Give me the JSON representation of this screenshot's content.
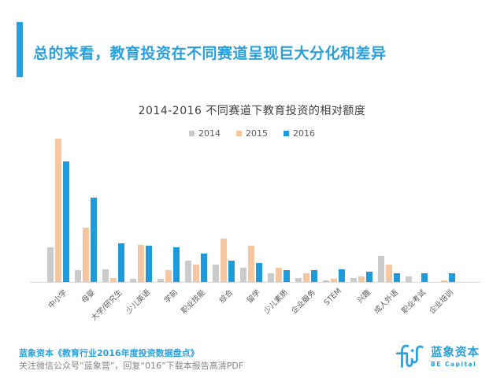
{
  "slide": {
    "title": "总的来看，教育投资在不同赛道呈现巨大分化和差异",
    "accent_color": "#29A0DC"
  },
  "chart_data": {
    "type": "bar",
    "title": "2014-2016  不同赛道下教育投资的相对额度",
    "categories": [
      "中小学",
      "母婴",
      "大学/研究生",
      "少儿英语",
      "学前",
      "职业技能",
      "综合",
      "留学",
      "少儿素质",
      "企业服务",
      "STEM",
      "兴趣",
      "成人外语",
      "职业考试",
      "企业培训"
    ],
    "series": [
      {
        "name": "2014",
        "color": "#CBCBCB",
        "values": [
          24,
          8,
          9,
          2,
          2,
          15,
          12,
          10,
          6,
          3,
          1,
          3,
          18,
          4,
          0
        ]
      },
      {
        "name": "2015",
        "color": "#F6C6A1",
        "values": [
          100,
          38,
          3,
          26,
          8,
          12,
          30,
          25,
          10,
          6,
          2,
          4,
          12,
          0,
          1
        ]
      },
      {
        "name": "2016",
        "color": "#1F9BDC",
        "values": [
          84,
          59,
          27,
          25,
          24,
          20,
          15,
          13,
          8,
          8,
          9,
          7,
          6,
          6,
          6
        ]
      }
    ],
    "ylim": [
      0,
      100
    ],
    "y_axis_visible": false,
    "grid": false,
    "legend_position": "top",
    "value_scale": "relative, tallest bar = 100"
  },
  "footer": {
    "source_line": "蓝象资本《教育行业2016年度投资数据盘点》",
    "subscribe_line": "关注微信公众号“蓝象营”，回复“016”下载本报告高清PDF"
  },
  "logo": {
    "name_cn": "蓝象资本",
    "name_en": "BE Capital",
    "color": "#29A0DC",
    "icon": "elephant-line-icon"
  }
}
